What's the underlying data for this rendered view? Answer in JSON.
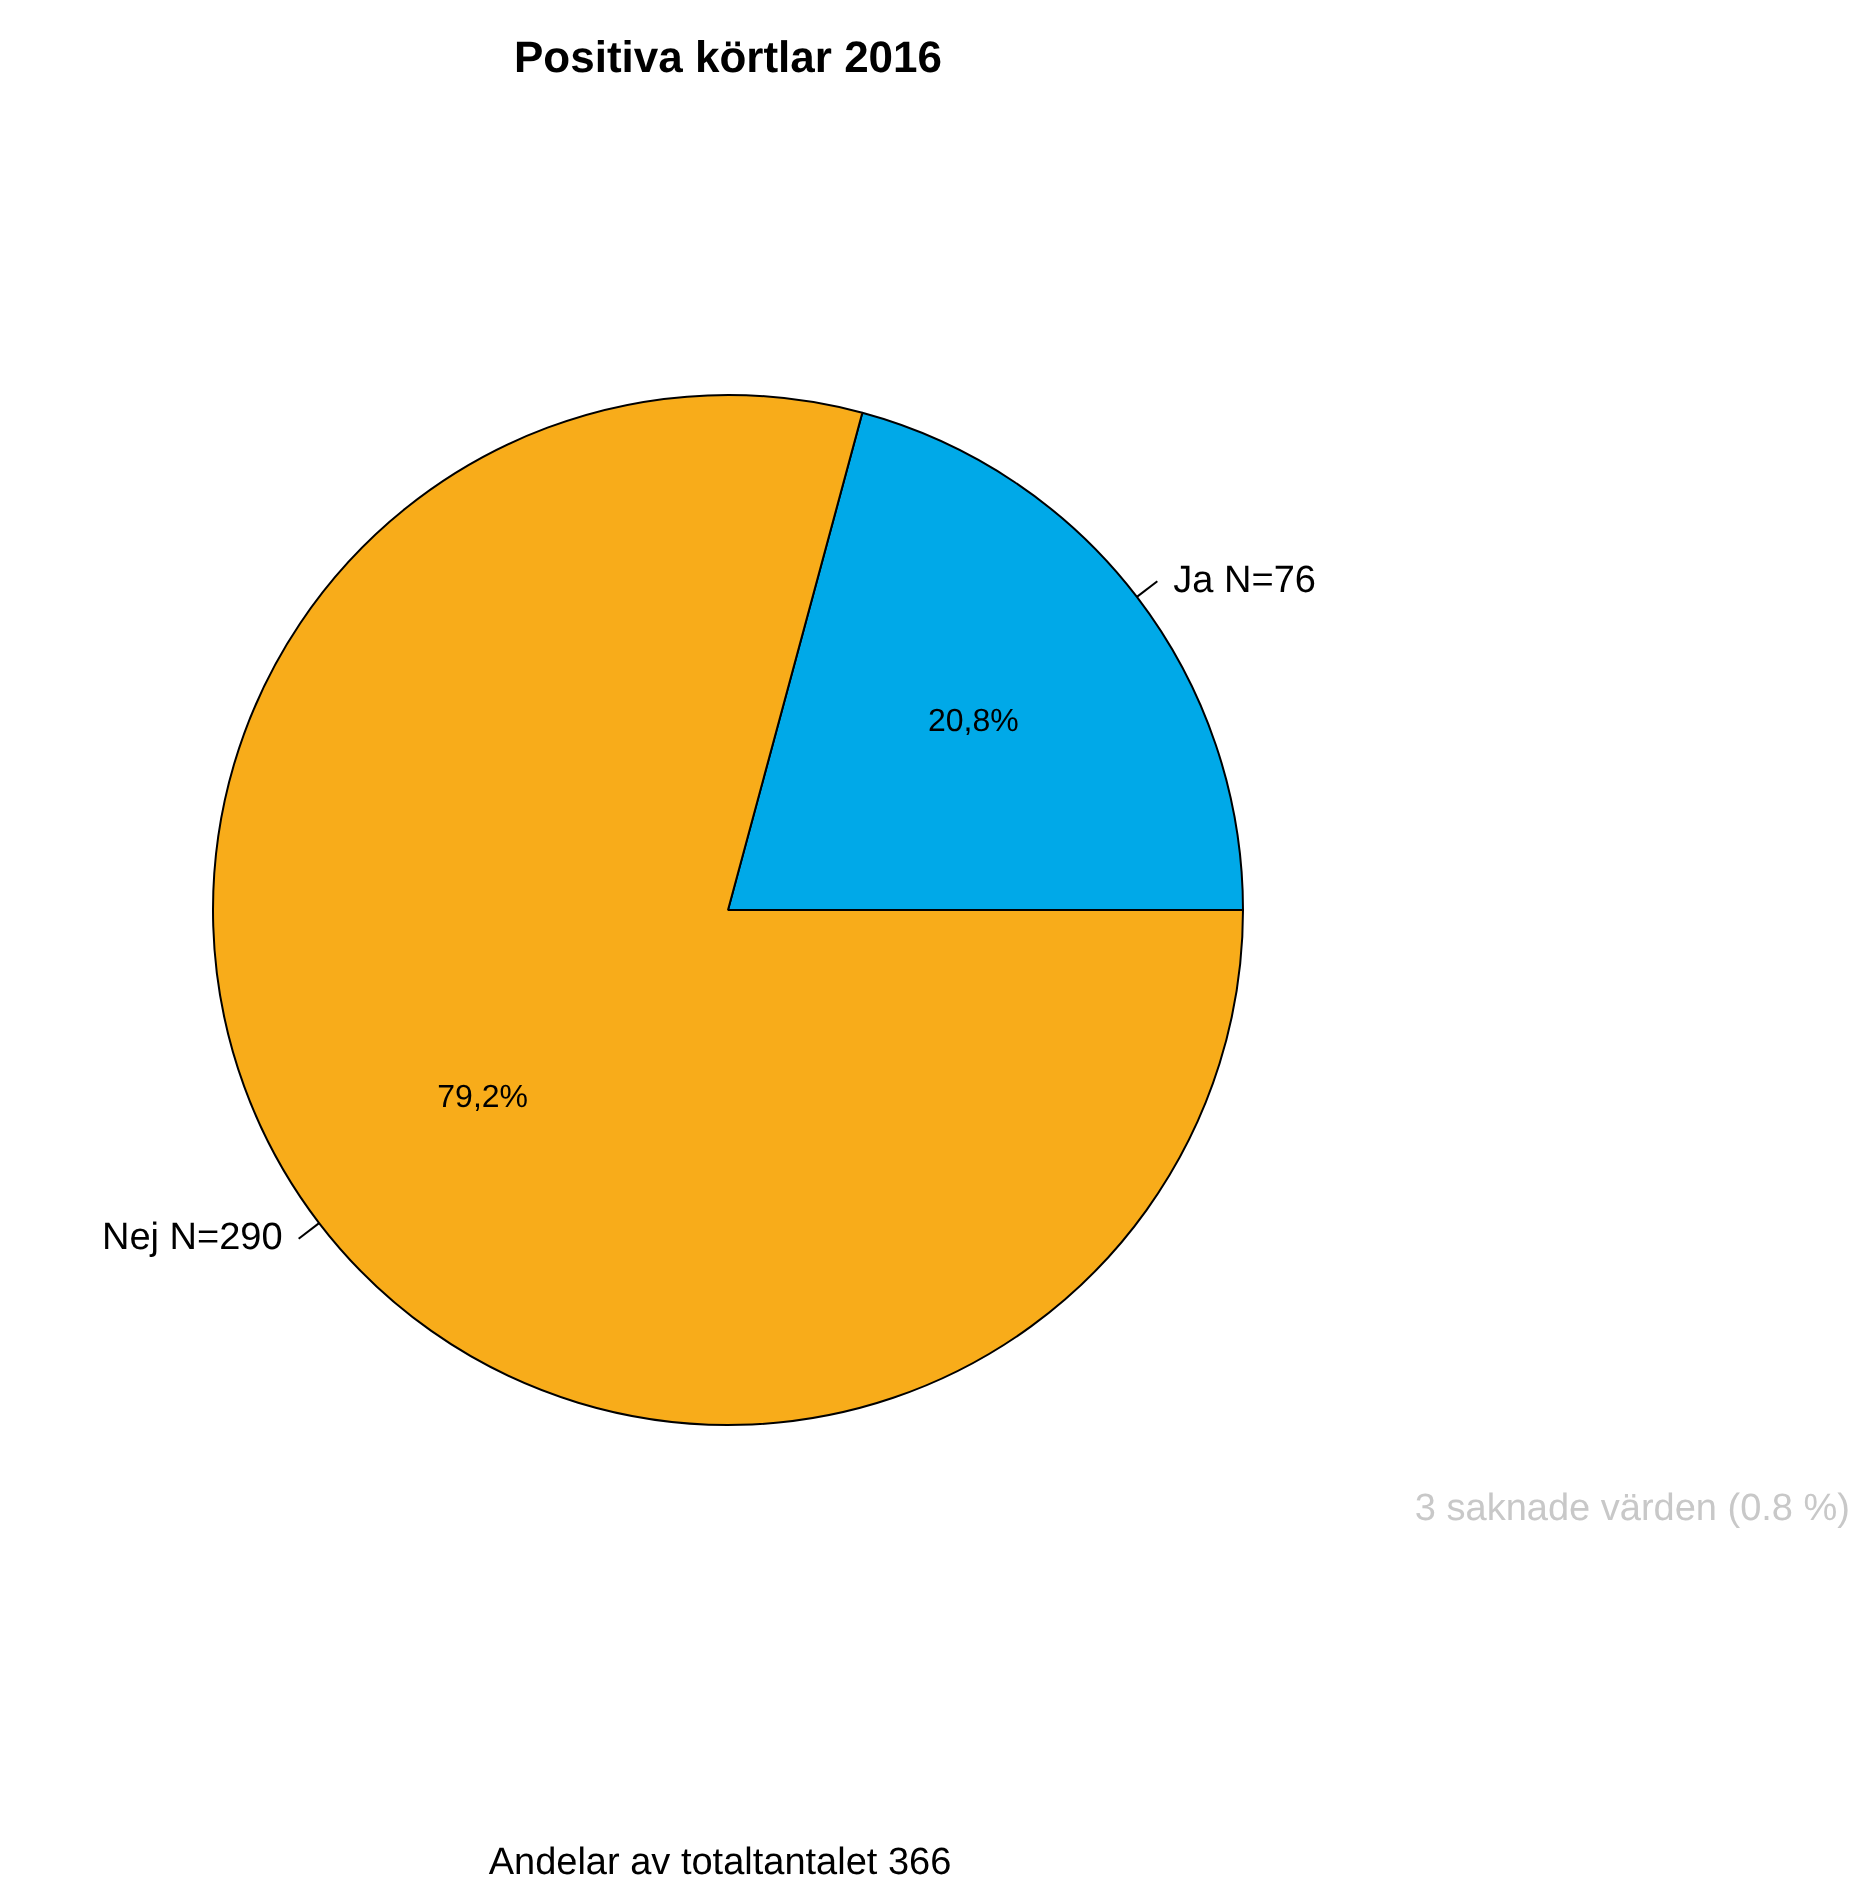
{
  "chart_data": {
    "type": "pie",
    "title": "Positiva körtlar 2016",
    "categories": [
      "Ja N=76",
      "Nej N=290"
    ],
    "values": [
      20.8,
      79.2
    ],
    "colors": [
      "#00a9e8",
      "#f8ac1a"
    ],
    "value_labels": [
      "20,8%",
      "79,2%"
    ],
    "legend": false,
    "annotations": [
      "3 saknade värden (0.8 %)",
      "Andelar av totaltantalet 366"
    ]
  }
}
